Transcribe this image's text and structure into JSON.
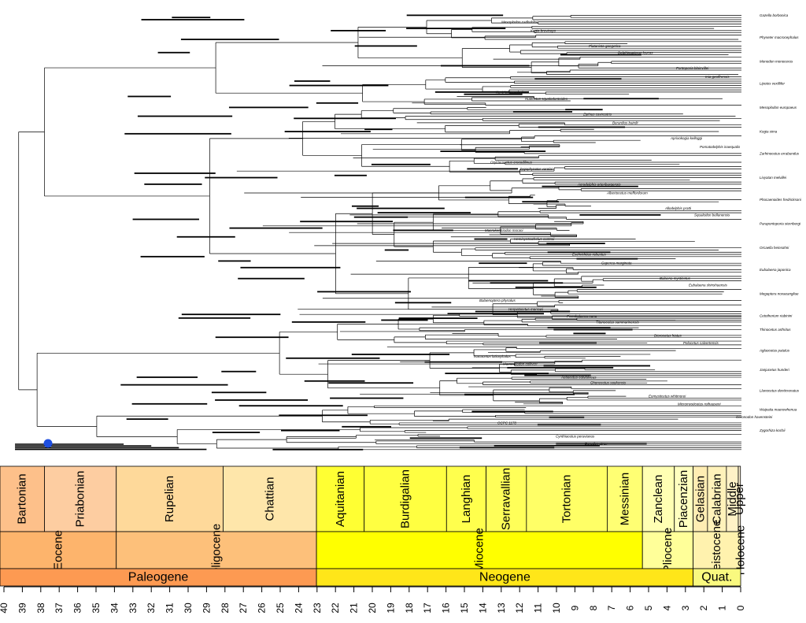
{
  "tree": {
    "tip_labels": [
      "Gazella borbonica",
      "Mesoplodon carlhubbsi",
      "Kogia breviceps",
      "Physeter macrocephalus",
      "Platanista gangetica",
      "Delphinapterus leucas",
      "Monodon monoceros",
      "Pontoporia blainvillei",
      "Inia geoffrensis",
      "Lipotes vexillifer",
      "Kentriodon nakajimai",
      "Rudicetus squalodontoides",
      "Mesoplodon europaeus",
      "Ziphius cavirostris",
      "Berardius bairdii",
      "Kogia sima",
      "Aprixokogia kelloggi",
      "Pomatodelphis inaequalis",
      "Zarhinocetus errabundus",
      "Orycterocetus crocodilinus",
      "Zygophyseter varolai",
      "Livyatan melvillei",
      "Acrodelphis ortenburgensis",
      "Albertocetus meffordorum",
      "Phocaenoides fredricksoni",
      "Allodelphis pratti",
      "Squalodon bellunensis",
      "Parapontoporia sternbergi",
      "Macrokentriodon morani",
      "Hemisyntrachelus cortesii",
      "Orcaella heinsohni",
      "Eschrichtius robustus",
      "Caperea marginata",
      "Eubalaena japonica",
      "Balaena mysticetus",
      "Eubalaena shinshuensis",
      "Megaptera novaeangliae",
      "Balaenoptera physalus",
      "Herpetocetus morrowi",
      "Cetotherium riabinini",
      "Piscobalaena nana",
      "Titanocetus sammarinensis",
      "Thinocetus arthritus",
      "Diorocetus hiatus",
      "Pelocetus calvertensis",
      "Aglaocetus patulus",
      "Isanacetus laticephalus",
      "Mammalodon colliveri",
      "Janjucetus hunderi",
      "Aetiocetus cotylalveus",
      "Chonecetus sookensis",
      "Llanocetus denticrenatus",
      "Eomysticetus whitmorei",
      "Micromysticetus rothauseni",
      "Waipatia maerewhenua",
      "Coronodon havensteini",
      "OCPC 1178",
      "Zygorhiza kochii",
      "Cynthiacetus peruvianus",
      "Dorudon atrox"
    ]
  },
  "timescale": {
    "axis": {
      "ticks": [
        "40",
        "39",
        "38",
        "37",
        "36",
        "35",
        "34",
        "33",
        "32",
        "31",
        "30",
        "29",
        "28",
        "27",
        "26",
        "25",
        "24",
        "23",
        "22",
        "21",
        "20",
        "19",
        "18",
        "17",
        "16",
        "15",
        "14",
        "13",
        "12",
        "11",
        "10",
        "9",
        "8",
        "7",
        "6",
        "5",
        "4",
        "3",
        "2",
        "1",
        "0"
      ]
    },
    "stages": [
      {
        "name": "Bartonian",
        "start": 41.2,
        "end": 37.8,
        "color": "#fdc08a"
      },
      {
        "name": "Priabonian",
        "start": 37.8,
        "end": 33.9,
        "color": "#fdcda1"
      },
      {
        "name": "Rupelian",
        "start": 33.9,
        "end": 28.1,
        "color": "#fed99a"
      },
      {
        "name": "Chattian",
        "start": 28.1,
        "end": 23.03,
        "color": "#fee6aa"
      },
      {
        "name": "Aquitanian",
        "start": 23.03,
        "end": 20.44,
        "color": "#ffff33"
      },
      {
        "name": "Burdigalian",
        "start": 20.44,
        "end": 15.97,
        "color": "#ffff41"
      },
      {
        "name": "Langhian",
        "start": 15.97,
        "end": 13.82,
        "color": "#ffff4d"
      },
      {
        "name": "Serravallian",
        "start": 13.82,
        "end": 11.63,
        "color": "#ffff59"
      },
      {
        "name": "Tortonian",
        "start": 11.63,
        "end": 7.246,
        "color": "#ffff66"
      },
      {
        "name": "Messinian",
        "start": 7.246,
        "end": 5.333,
        "color": "#ffff73"
      },
      {
        "name": "Zanclean",
        "start": 5.333,
        "end": 3.6,
        "color": "#ffffb3"
      },
      {
        "name": "Piacenzian",
        "start": 3.6,
        "end": 2.58,
        "color": "#ffffbf"
      },
      {
        "name": "Gelasian",
        "start": 2.58,
        "end": 1.8,
        "color": "#ffedb3"
      },
      {
        "name": "Calabrian",
        "start": 1.8,
        "end": 0.774,
        "color": "#fff2ba"
      },
      {
        "name": "Middle",
        "start": 0.774,
        "end": 0.129,
        "color": "#fff2c7"
      },
      {
        "name": "Upper",
        "start": 0.129,
        "end": 0.0117,
        "color": "#fff2d3"
      }
    ],
    "epochs": [
      {
        "name": "Eocene",
        "start": 41.2,
        "end": 33.9,
        "color": "#fdb46c"
      },
      {
        "name": "Oligocene",
        "start": 33.9,
        "end": 23.03,
        "color": "#fdc07a"
      },
      {
        "name": "Miocene",
        "start": 23.03,
        "end": 5.333,
        "color": "#ffff00"
      },
      {
        "name": "Pliocene",
        "start": 5.333,
        "end": 2.58,
        "color": "#ffff99"
      },
      {
        "name": "Pleistocene",
        "start": 2.58,
        "end": 0.0117,
        "color": "#fff2ae"
      },
      {
        "name": "Holocene",
        "start": 0.0117,
        "end": 0,
        "color": "#fef2e0"
      }
    ],
    "periods": [
      {
        "name": "Paleogene",
        "start": 41.2,
        "end": 23.03,
        "color": "#fd9a52"
      },
      {
        "name": "Neogene",
        "start": 23.03,
        "end": 2.58,
        "color": "#ffe619"
      },
      {
        "name": "Quat.",
        "start": 2.58,
        "end": 0,
        "color": "#f9f97f"
      }
    ]
  },
  "colors": {
    "root_marker": "#1f4fe0",
    "branch": "#000000"
  }
}
